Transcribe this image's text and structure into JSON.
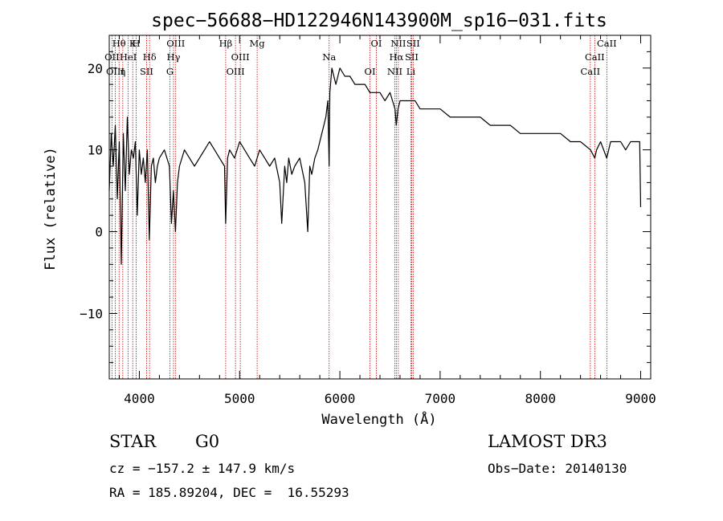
{
  "chart_data": {
    "type": "line",
    "title": "spec−56688−HD122946N143900M_sp16−031.fits",
    "xlabel": "Wavelength (Å)",
    "ylabel": "Flux (relative)",
    "xlim": [
      3700,
      9100
    ],
    "ylim": [
      -18,
      24
    ],
    "xticks": [
      4000,
      5000,
      6000,
      7000,
      8000,
      9000
    ],
    "xtick_labels": [
      "4000",
      "5000",
      "6000",
      "7000",
      "8000",
      "9000"
    ],
    "yticks": [
      -10,
      0,
      10,
      20
    ],
    "ytick_labels": [
      "−10",
      "0",
      "10",
      "20"
    ],
    "grid": false,
    "series": [
      {
        "name": "spectrum",
        "x": [
          3700,
          3720,
          3740,
          3760,
          3780,
          3800,
          3820,
          3840,
          3860,
          3880,
          3900,
          3920,
          3940,
          3960,
          3980,
          4000,
          4020,
          4040,
          4060,
          4080,
          4100,
          4120,
          4140,
          4160,
          4180,
          4200,
          4250,
          4300,
          4320,
          4340,
          4360,
          4380,
          4400,
          4450,
          4500,
          4550,
          4600,
          4650,
          4700,
          4750,
          4800,
          4850,
          4861,
          4880,
          4900,
          4950,
          5000,
          5050,
          5100,
          5150,
          5200,
          5250,
          5300,
          5350,
          5400,
          5420,
          5450,
          5470,
          5490,
          5520,
          5550,
          5600,
          5650,
          5680,
          5700,
          5720,
          5750,
          5780,
          5800,
          5820,
          5840,
          5860,
          5880,
          5893,
          5900,
          5920,
          5940,
          5960,
          5980,
          6000,
          6050,
          6100,
          6150,
          6200,
          6250,
          6300,
          6350,
          6400,
          6450,
          6500,
          6550,
          6563,
          6580,
          6600,
          6650,
          6700,
          6750,
          6800,
          6850,
          6900,
          6950,
          7000,
          7100,
          7200,
          7300,
          7400,
          7500,
          7600,
          7700,
          7800,
          7900,
          8000,
          8100,
          8200,
          8300,
          8400,
          8500,
          8542,
          8560,
          8600,
          8662,
          8700,
          8750,
          8800,
          8850,
          8900,
          8950,
          8990,
          9000
        ],
        "values": [
          5,
          12,
          8,
          13,
          4,
          11,
          -4,
          12,
          5,
          14,
          7,
          10,
          9,
          11,
          2,
          10,
          7,
          9,
          6,
          10,
          -1,
          8,
          9,
          6,
          8,
          9,
          10,
          8,
          1,
          5,
          0,
          6,
          8,
          10,
          9,
          8,
          9,
          10,
          11,
          10,
          9,
          8,
          1,
          9,
          10,
          9,
          11,
          10,
          9,
          8,
          10,
          9,
          8,
          9,
          6,
          1,
          8,
          6,
          9,
          7,
          8,
          9,
          6,
          0,
          8,
          7,
          9,
          10,
          11,
          12,
          13,
          14,
          16,
          8,
          17,
          20,
          19,
          18,
          19,
          20,
          19,
          19,
          18,
          18,
          18,
          17,
          17,
          17,
          16,
          17,
          15,
          13,
          15,
          16,
          16,
          16,
          16,
          15,
          15,
          15,
          15,
          15,
          14,
          14,
          14,
          14,
          13,
          13,
          13,
          12,
          12,
          12,
          12,
          12,
          11,
          11,
          10,
          9,
          10,
          11,
          9,
          11,
          11,
          11,
          10,
          11,
          11,
          11,
          3
        ]
      }
    ],
    "annotation_lines": [
      {
        "label": "Hθ",
        "x": 3798
      },
      {
        "label": "OII",
        "x": 3727
      },
      {
        "label": "OIII",
        "x": 3760
      },
      {
        "label": "K",
        "x": 3934
      },
      {
        "label": "HeI",
        "x": 3889
      },
      {
        "label": "η",
        "x": 3835
      },
      {
        "label": "H",
        "x": 3969
      },
      {
        "label": "Hδ",
        "x": 4102
      },
      {
        "label": "SII",
        "x": 4072
      },
      {
        "label": "OIII",
        "x": 4363
      },
      {
        "label": "Hγ",
        "x": 4341
      },
      {
        "label": "G",
        "x": 4305
      },
      {
        "label": "Hβ",
        "x": 4861
      },
      {
        "label": "OIII",
        "x": 5007
      },
      {
        "label": "OIII",
        "x": 4959
      },
      {
        "label": "Mg",
        "x": 5175
      },
      {
        "label": "Na",
        "x": 5893
      },
      {
        "label": "OI",
        "x": 6300
      },
      {
        "label": "OI",
        "x": 6364
      },
      {
        "label": "Hα",
        "x": 6563
      },
      {
        "label": "NII",
        "x": 6548
      },
      {
        "label": "NII",
        "x": 6583
      },
      {
        "label": "SII",
        "x": 6716
      },
      {
        "label": "Li",
        "x": 6708
      },
      {
        "label": "SII",
        "x": 6731
      },
      {
        "label": "CaII",
        "x": 8542
      },
      {
        "label": "CaII",
        "x": 8498
      },
      {
        "label": "CaII",
        "x": 8662
      }
    ]
  },
  "info": {
    "class": "STAR",
    "subclass": "G0",
    "survey": "LAMOST DR3",
    "cz": "cz = −157.2 ± 147.9 km/s",
    "obs_date": "Obs−Date: 20140130",
    "coords": "RA = 185.89204, DEC =  16.55293"
  },
  "colors": {
    "spectrum": "#000000",
    "annotation": "#cc0000",
    "axes": "#000000"
  }
}
